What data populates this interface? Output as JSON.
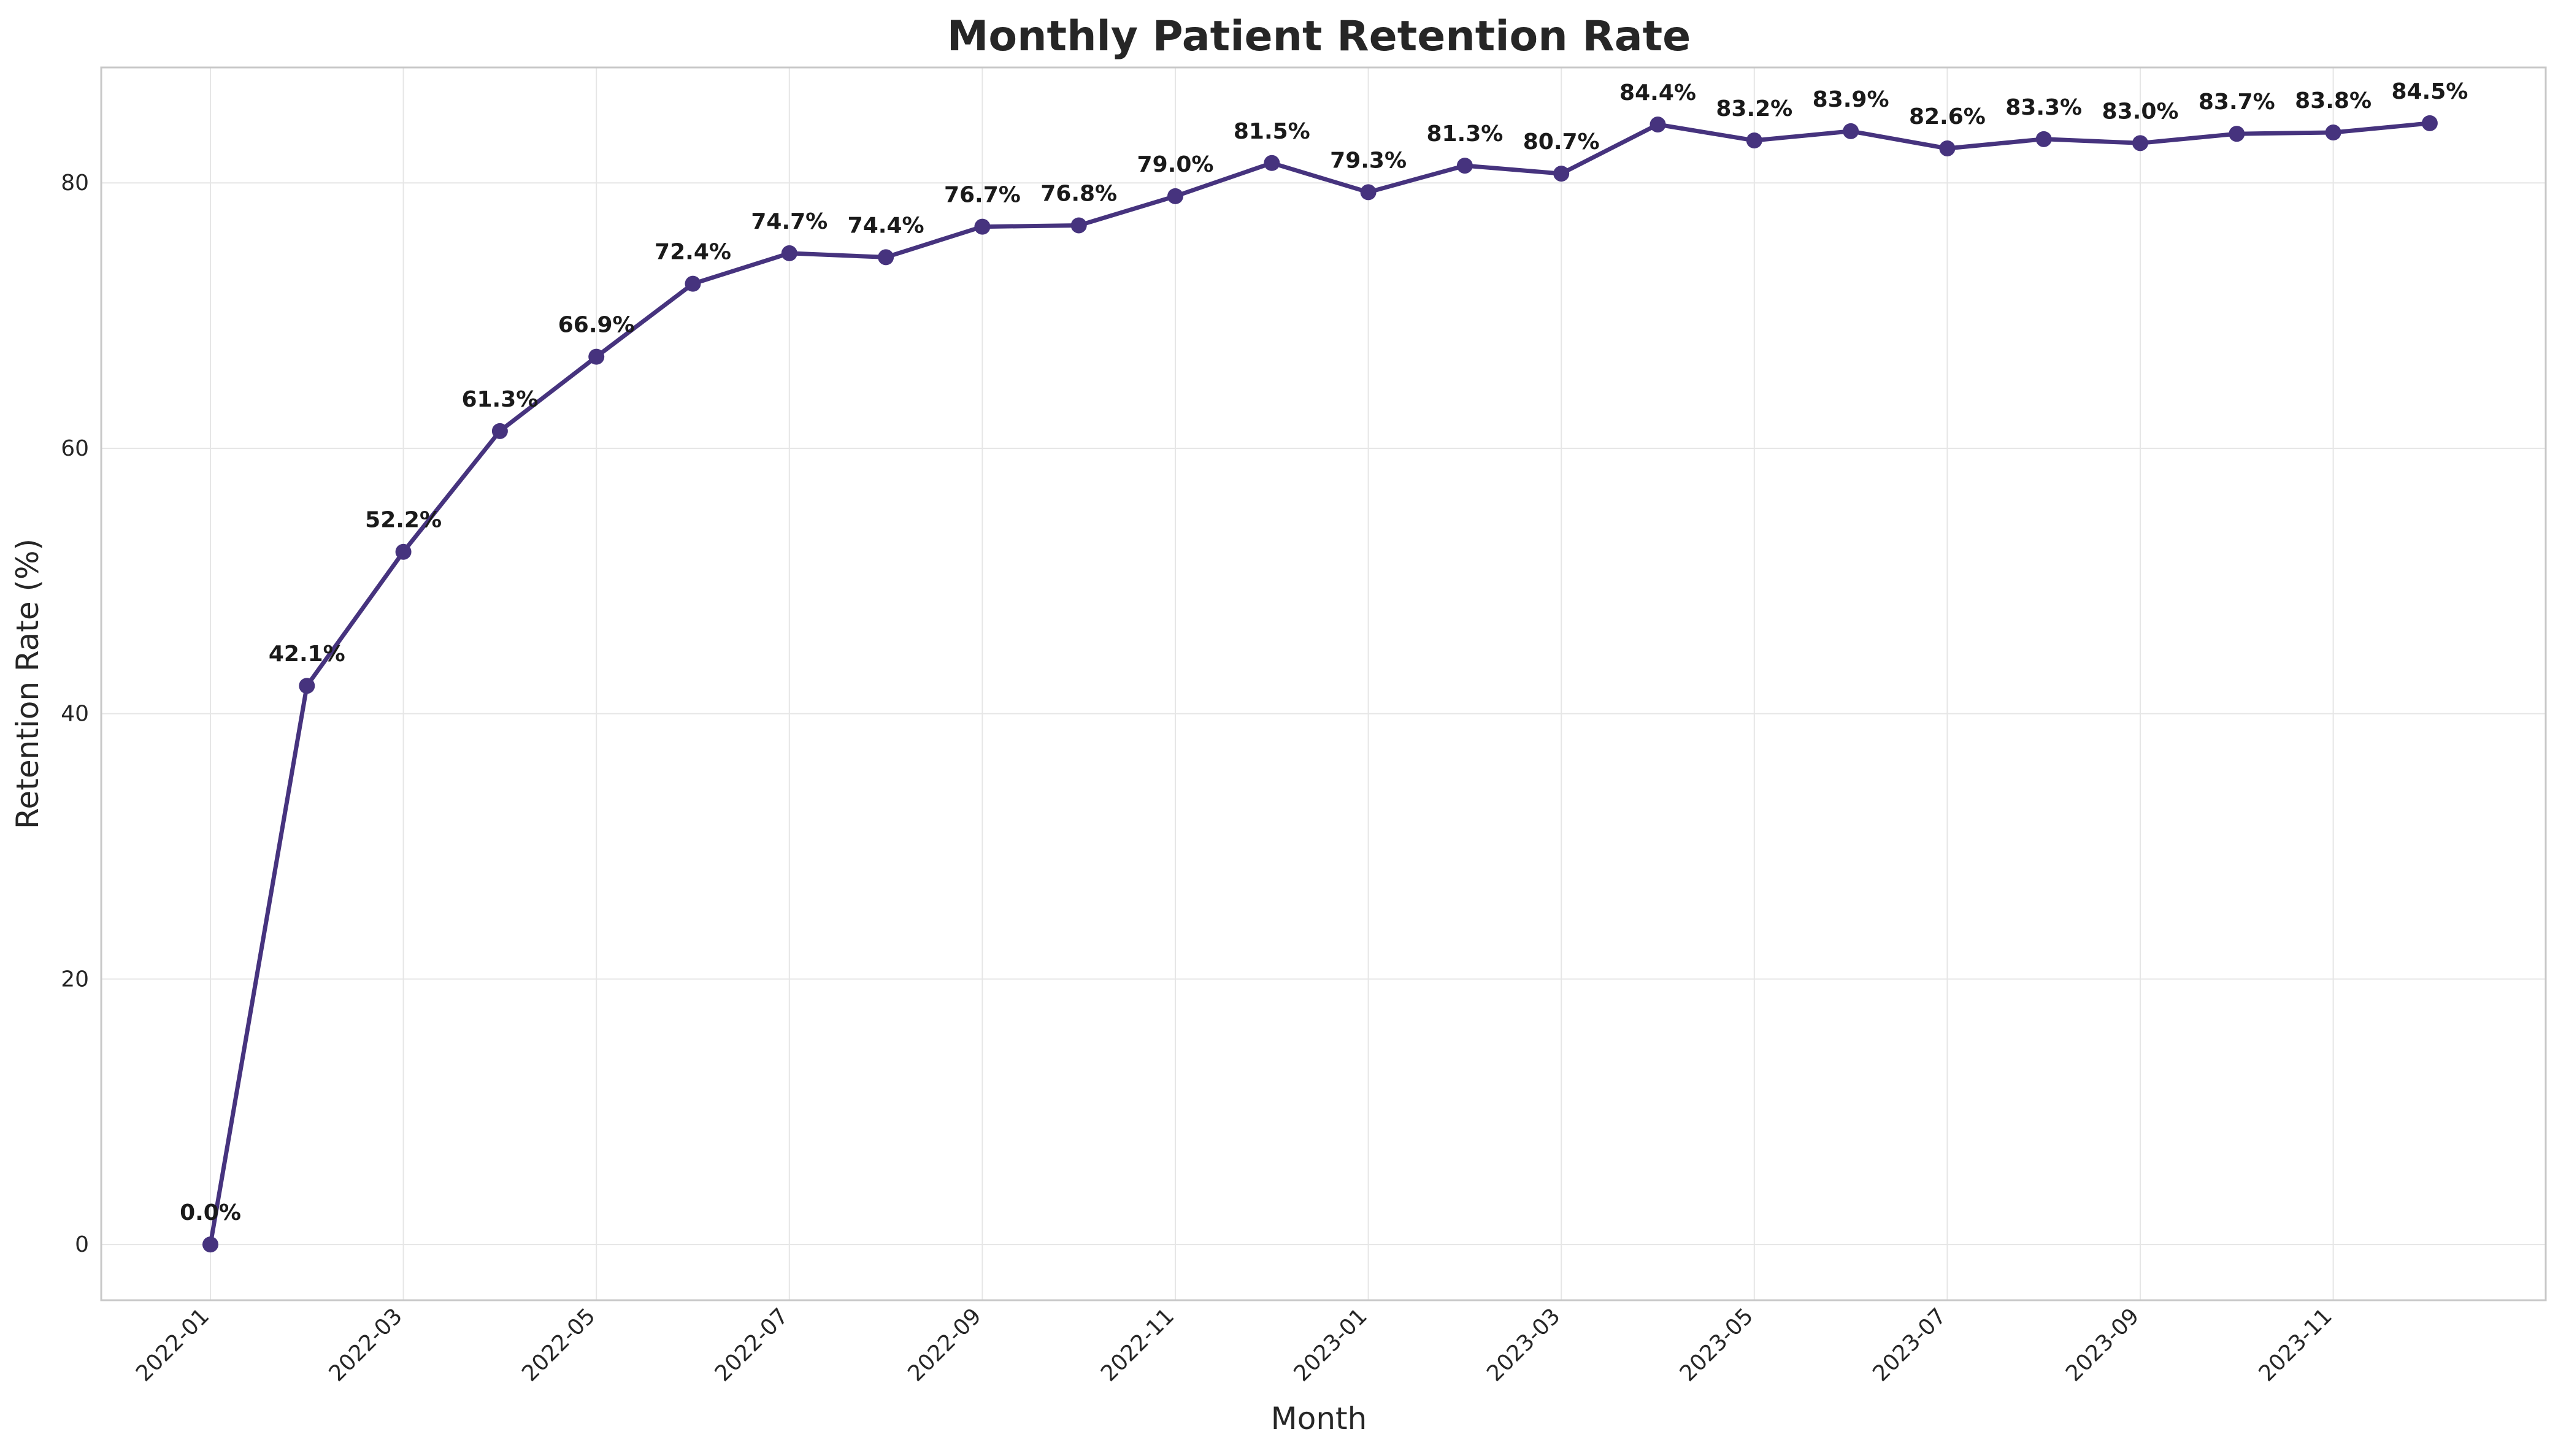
{
  "chart_data": {
    "type": "line",
    "title": "Monthly Patient Retention Rate",
    "xlabel": "Month",
    "ylabel": "Retention Rate (%)",
    "ylim": [
      -4.2,
      88.7
    ],
    "y_ticks": [
      0,
      20,
      40,
      60,
      80
    ],
    "x_tick_labels": [
      "2022-01",
      "2022-03",
      "2022-05",
      "2022-07",
      "2022-09",
      "2022-11",
      "2023-01",
      "2023-03",
      "2023-05",
      "2023-07",
      "2023-09",
      "2023-11"
    ],
    "x": [
      "2022-01",
      "2022-02",
      "2022-03",
      "2022-04",
      "2022-05",
      "2022-06",
      "2022-07",
      "2022-08",
      "2022-09",
      "2022-10",
      "2022-11",
      "2022-12",
      "2023-01",
      "2023-02",
      "2023-03",
      "2023-04",
      "2023-05",
      "2023-06",
      "2023-07",
      "2023-08",
      "2023-09",
      "2023-10",
      "2023-11",
      "2023-12"
    ],
    "values": [
      0.0,
      42.1,
      52.2,
      61.3,
      66.9,
      72.4,
      74.7,
      74.4,
      76.7,
      76.8,
      79.0,
      81.5,
      79.3,
      81.3,
      80.7,
      84.4,
      83.2,
      83.9,
      82.6,
      83.3,
      83.0,
      83.7,
      83.8,
      84.5
    ],
    "data_labels": [
      "0.0%",
      "42.1%",
      "52.2%",
      "61.3%",
      "66.9%",
      "72.4%",
      "74.7%",
      "74.4%",
      "76.7%",
      "76.8%",
      "79.0%",
      "81.5%",
      "79.3%",
      "81.3%",
      "80.7%",
      "84.4%",
      "83.2%",
      "83.9%",
      "82.6%",
      "83.3%",
      "83.0%",
      "83.7%",
      "83.8%",
      "84.5%"
    ],
    "line_color": "#46337e",
    "grid": true,
    "legend": false
  }
}
